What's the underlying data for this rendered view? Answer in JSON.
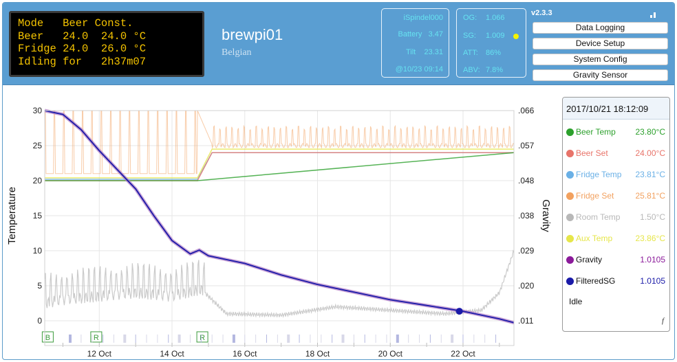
{
  "lcd": {
    "lines": [
      "Mode   Beer Const.",
      "Beer   24.0  24.0 °C",
      "Fridge 24.0  26.0 °C",
      "Idling for   2h37m07"
    ]
  },
  "header": {
    "title": "brewpi01",
    "profile": "Belgian",
    "version": "v2.3.3"
  },
  "ispindel": {
    "name": "iSpindel000",
    "battery_label": "Battery",
    "battery": "3.47",
    "tilt_label": "Tilt",
    "tilt": "23.31",
    "time": "@10/23 09:14"
  },
  "gravity": {
    "og_label": "OG:",
    "og": "1.066",
    "sg_label": "SG:",
    "sg": "1.009",
    "att_label": "ATT:",
    "att": "86%",
    "abv_label": "ABV:",
    "abv": "7.8%",
    "status_color": "#f3f300"
  },
  "buttons": [
    "Data Logging",
    "Device Setup",
    "System Config",
    "Gravity Sensor"
  ],
  "legend": {
    "timestamp": "2017/10/21 18:12:09",
    "items": [
      {
        "name": "Beer Temp",
        "value": "23.80°C",
        "color": "#2ca02c"
      },
      {
        "name": "Beer Set",
        "value": "24.00°C",
        "color": "#e8746a"
      },
      {
        "name": "Fridge Temp",
        "value": "23.81°C",
        "color": "#6ab0e6"
      },
      {
        "name": "Fridge Set",
        "value": "25.81°C",
        "color": "#f2a15f"
      },
      {
        "name": "Room Temp",
        "value": "1.50°C",
        "color": "#b8b8b8"
      },
      {
        "name": "Aux Temp",
        "value": "23.86°C",
        "color": "#e6e64a"
      },
      {
        "name": "Gravity",
        "value": "1.0105",
        "color": "#8b1a9a"
      },
      {
        "name": "FilteredSG",
        "value": "1.0105",
        "color": "#1a1aa8"
      }
    ],
    "state": "Idle",
    "footer_mark": "f"
  },
  "chart_data": {
    "type": "line",
    "title": "",
    "xlabel": "",
    "ylabel": "Temperature",
    "y2label": "Gravity",
    "ylim": [
      0,
      30
    ],
    "y2lim": [
      1.011,
      1.066
    ],
    "yticks": [
      "0",
      "5",
      "10",
      "15",
      "20",
      "25",
      "30"
    ],
    "y2ticks": [
      ".011",
      ".020",
      ".029",
      ".038",
      ".048",
      ".057",
      ".066"
    ],
    "xticks": [
      "12 Oct",
      "14 Oct",
      "16 Oct",
      "18 Oct",
      "20 Oct",
      "22 Oct"
    ],
    "xrange_days": [
      "2017-10-10T12:00",
      "2017-10-23T09:14"
    ],
    "grid": true,
    "markers": [
      {
        "label": "B",
        "date": "2017-10-10T14:00"
      },
      {
        "label": "R",
        "date": "2017-10-11T22:00"
      },
      {
        "label": "R",
        "date": "2017-10-14T20:00"
      }
    ],
    "series": [
      {
        "name": "Beer Temp",
        "x": [
          10.5,
          11.0,
          12.5,
          14.7,
          23.4
        ],
        "y": [
          20.0,
          20.0,
          20.0,
          20.0,
          24.0
        ]
      },
      {
        "name": "Beer Set",
        "x": [
          10.5,
          14.7,
          15.1,
          23.4
        ],
        "y": [
          20.0,
          20.0,
          24.0,
          24.0
        ]
      },
      {
        "name": "Fridge Set",
        "x": [
          10.5,
          14.7,
          15.1,
          23.4
        ],
        "y": [
          21.0,
          21.0,
          25.0,
          25.8
        ]
      },
      {
        "name": "Fridge Temp",
        "x": [
          10.5,
          14.7,
          15.1,
          23.4
        ],
        "y": [
          20.2,
          20.2,
          24.0,
          24.0
        ]
      },
      {
        "name": "Room Temp",
        "x": [
          10.5,
          11.0,
          12.0,
          13.0,
          14.0,
          14.8,
          15.5,
          17.0,
          18.5,
          20.0,
          21.5,
          22.5,
          23.0,
          23.4
        ],
        "y": [
          2.5,
          3.0,
          3.5,
          4.0,
          3.5,
          4.5,
          1.0,
          0.8,
          2.0,
          1.5,
          1.0,
          1.5,
          4.0,
          10.0
        ]
      },
      {
        "name": "Gravity",
        "x": [
          10.5,
          11.0,
          11.5,
          12.0,
          12.5,
          13.0,
          13.5,
          14.0,
          14.5,
          14.75,
          15.0,
          16.0,
          17.0,
          18.0,
          19.0,
          20.0,
          21.0,
          22.0,
          23.0,
          23.4
        ],
        "y": [
          1.066,
          1.065,
          1.061,
          1.0555,
          1.0505,
          1.0455,
          1.0385,
          1.032,
          1.0285,
          1.0295,
          1.028,
          1.026,
          1.023,
          1.0205,
          1.0185,
          1.0165,
          1.015,
          1.0135,
          1.0115,
          1.0105
        ]
      },
      {
        "name": "FilteredSG",
        "x": [
          10.5,
          11.0,
          11.5,
          12.0,
          12.5,
          13.0,
          13.5,
          14.0,
          14.5,
          14.75,
          15.0,
          16.0,
          17.0,
          18.0,
          19.0,
          20.0,
          21.0,
          22.0,
          23.0,
          23.4
        ],
        "y": [
          1.066,
          1.065,
          1.061,
          1.0555,
          1.0505,
          1.0455,
          1.0385,
          1.032,
          1.0285,
          1.0295,
          1.028,
          1.026,
          1.023,
          1.0205,
          1.0185,
          1.0165,
          1.015,
          1.0135,
          1.0115,
          1.0105
        ]
      },
      {
        "name": "Aux Temp",
        "x": [
          10.5,
          14.7,
          15.1,
          23.4
        ],
        "y": [
          20.4,
          20.4,
          24.5,
          24.5
        ]
      }
    ],
    "highlight_point": {
      "x": 21.9,
      "y": 1.0135
    }
  }
}
